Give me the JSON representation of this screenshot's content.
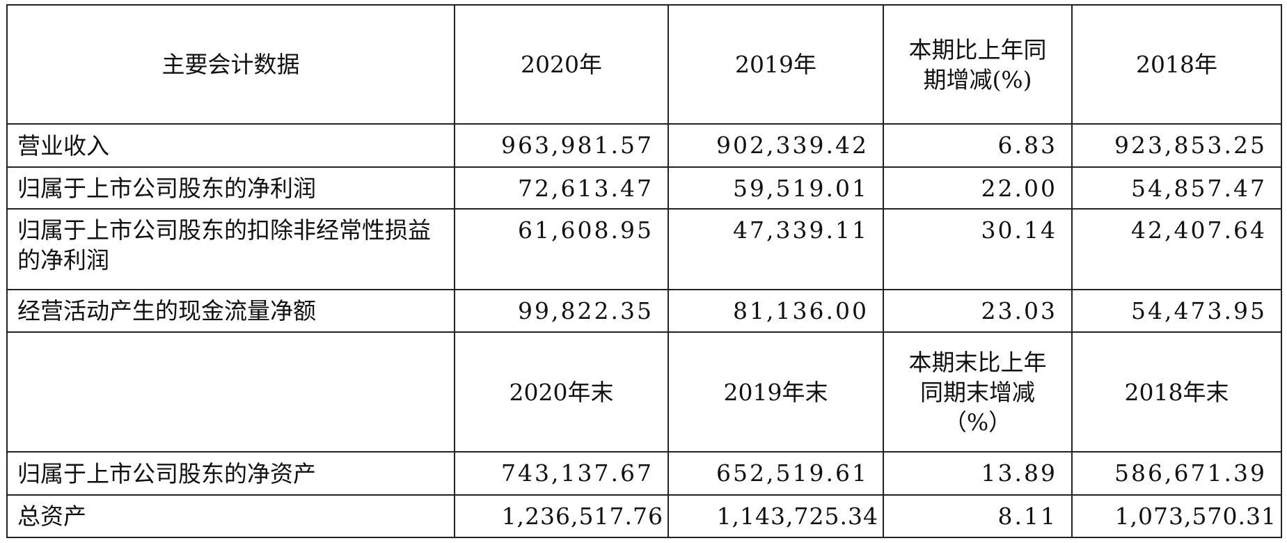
{
  "header1": [
    "主要会计数据",
    "2020年",
    "2019年",
    "本期比上年同期增减(%)",
    "2018年"
  ],
  "rows1": [
    {
      "label": "营业收入",
      "values": [
        "963,981.57",
        "902,339.42",
        "6.83",
        "923,853.25"
      ]
    },
    {
      "label": "归属于上市公司股东的净利润",
      "values": [
        "72,613.47",
        "59,519.01",
        "22.00",
        "54,857.47"
      ]
    },
    {
      "label": "归属于上市公司股东的扣除非经常性损益的净利润",
      "values": [
        "61,608.95",
        "47,339.11",
        "30.14",
        "42,407.64"
      ]
    },
    {
      "label": "经营活动产生的现金流量净额",
      "values": [
        "99,822.35",
        "81,136.00",
        "23.03",
        "54,473.95"
      ]
    }
  ],
  "header2": [
    "",
    "2020年末",
    "2019年末",
    "本期末比上年同期末增减（%）",
    "2018年末"
  ],
  "rows2": [
    {
      "label": "归属于上市公司股东的净资产",
      "values": [
        "743,137.67",
        "652,519.61",
        "13.89",
        "586,671.39"
      ]
    },
    {
      "label": "总资产",
      "values": [
        "1,236,517.76",
        "1,143,725.34",
        "8.11",
        "1,073,570.31"
      ]
    }
  ]
}
